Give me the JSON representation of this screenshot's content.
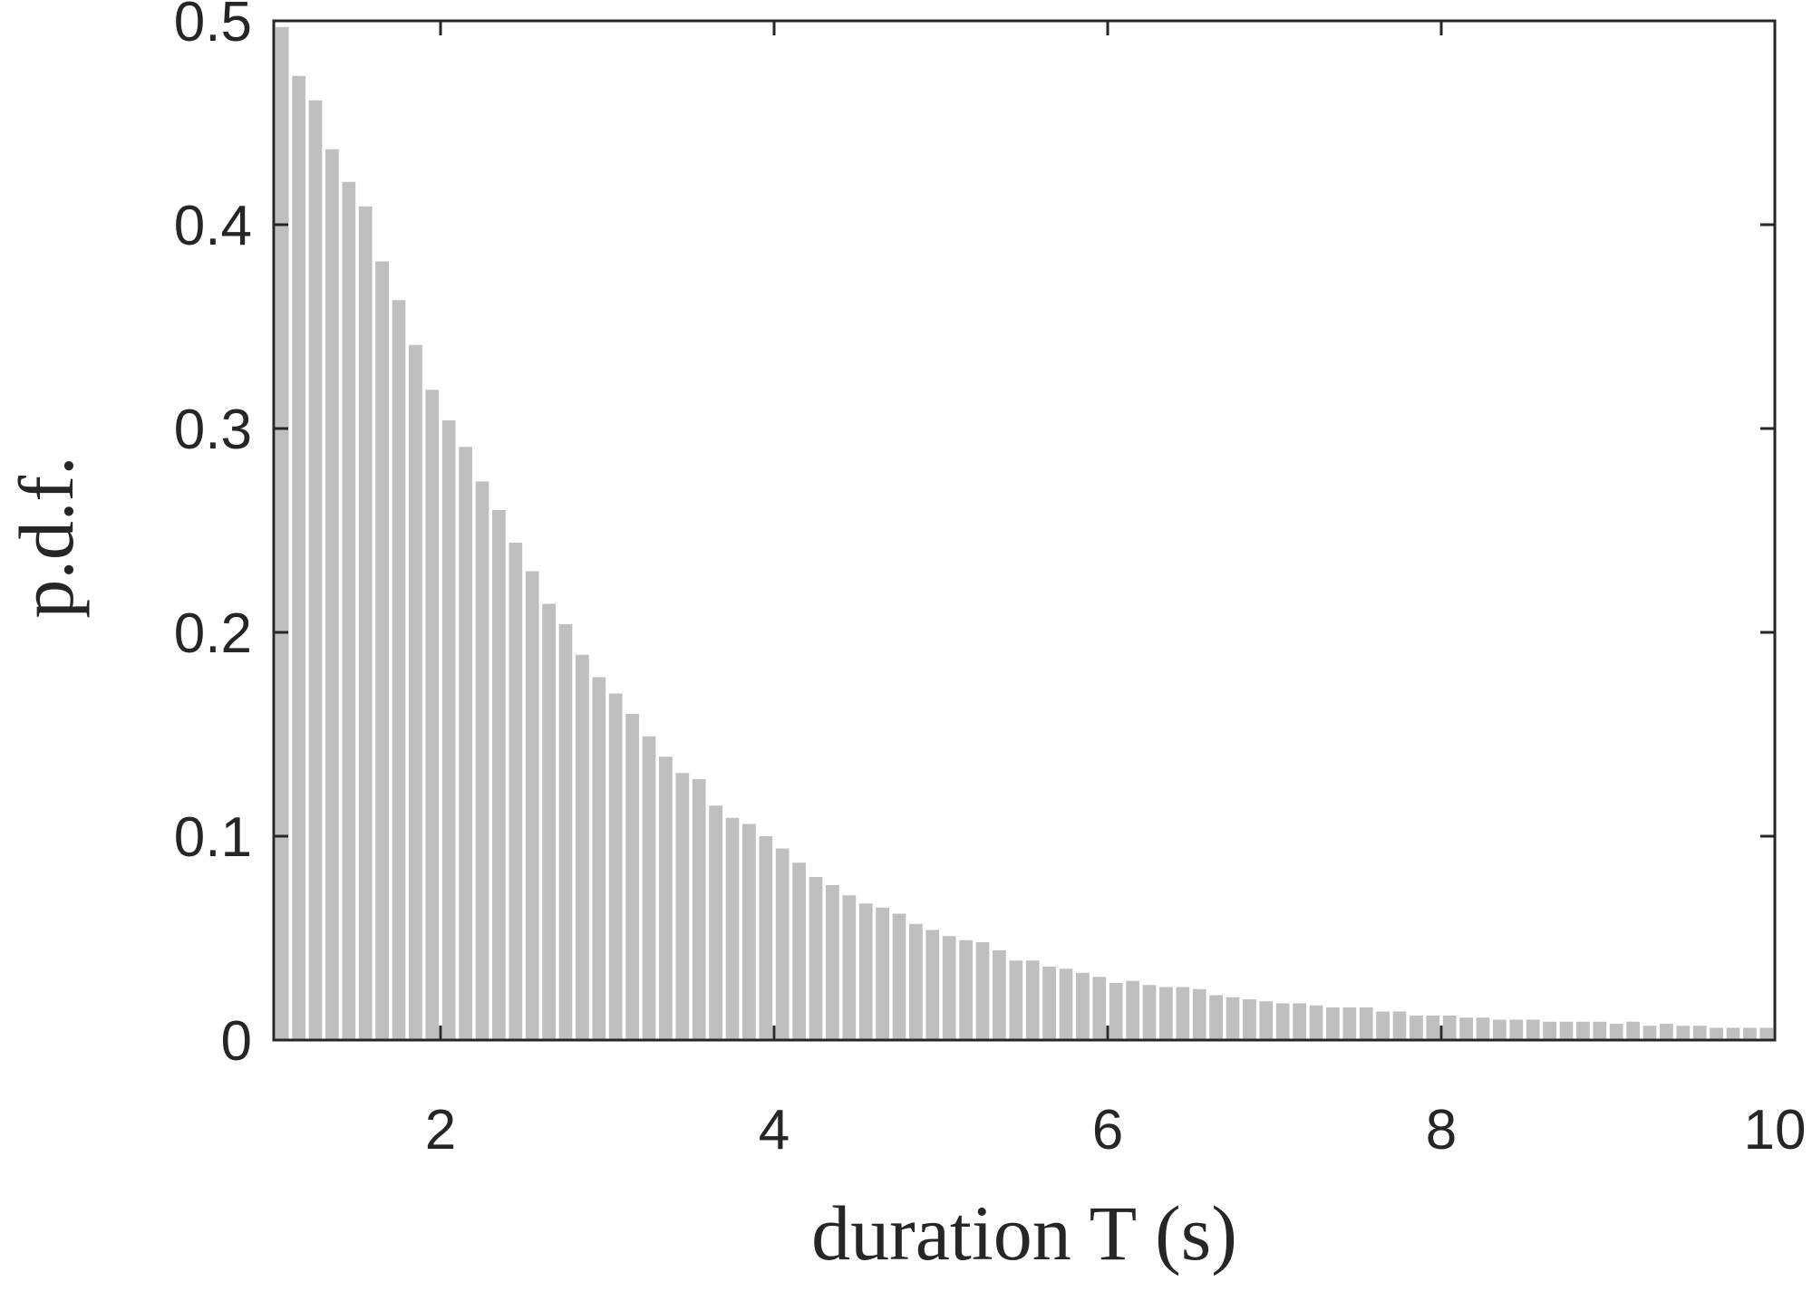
{
  "chart_data": {
    "type": "histogram",
    "xlabel": "duration T (s)",
    "ylabel": "p.d.f.",
    "color": "#bfbfbf",
    "bins": [
      1,
      1.1,
      1.2,
      1.3,
      1.4,
      1.5,
      1.6,
      1.7,
      1.8,
      1.9,
      2,
      2.1,
      2.2,
      2.3,
      2.4,
      2.5,
      2.6,
      2.7,
      2.8,
      2.9,
      3,
      3.1,
      3.2,
      3.3,
      3.4,
      3.5,
      3.6,
      3.7,
      3.8,
      3.9,
      4,
      4.1,
      4.2,
      4.3,
      4.4,
      4.5,
      4.6,
      4.7,
      4.8,
      4.9,
      5,
      5.1,
      5.2,
      5.3,
      5.4,
      5.5,
      5.6,
      5.7,
      5.8,
      5.9,
      6,
      6.1,
      6.2,
      6.3,
      6.4,
      6.5,
      6.6,
      6.7,
      6.8,
      6.9,
      7,
      7.1,
      7.2,
      7.3,
      7.4,
      7.5,
      7.6,
      7.7,
      7.8,
      7.9,
      8,
      8.1,
      8.2,
      8.3,
      8.4,
      8.5,
      8.6,
      8.7,
      8.8,
      8.9,
      9,
      9.1,
      9.2,
      9.3,
      9.4,
      9.5,
      9.6,
      9.7,
      9.8,
      9.9,
      10
    ],
    "values": [
      0.497,
      0.473,
      0.461,
      0.437,
      0.421,
      0.409,
      0.382,
      0.363,
      0.341,
      0.319,
      0.304,
      0.291,
      0.274,
      0.26,
      0.244,
      0.23,
      0.214,
      0.204,
      0.189,
      0.178,
      0.17,
      0.16,
      0.149,
      0.139,
      0.131,
      0.128,
      0.115,
      0.109,
      0.106,
      0.1,
      0.094,
      0.087,
      0.08,
      0.076,
      0.071,
      0.067,
      0.065,
      0.062,
      0.057,
      0.054,
      0.051,
      0.049,
      0.048,
      0.044,
      0.039,
      0.039,
      0.036,
      0.035,
      0.033,
      0.031,
      0.028,
      0.029,
      0.027,
      0.026,
      0.026,
      0.025,
      0.022,
      0.021,
      0.02,
      0.019,
      0.018,
      0.018,
      0.017,
      0.016,
      0.016,
      0.016,
      0.014,
      0.014,
      0.012,
      0.012,
      0.012,
      0.011,
      0.011,
      0.01,
      0.01,
      0.01,
      0.009,
      0.009,
      0.009,
      0.009,
      0.008,
      0.009,
      0.007,
      0.008,
      0.007,
      0.007,
      0.006,
      0.006,
      0.006,
      0.006
    ],
    "xlim": [
      1,
      10
    ],
    "xticks": [
      2,
      4,
      6,
      8,
      10
    ],
    "ylim": [
      0,
      0.5
    ],
    "yticks": [
      0,
      0.1,
      0.2,
      0.3,
      0.4,
      0.5
    ]
  }
}
